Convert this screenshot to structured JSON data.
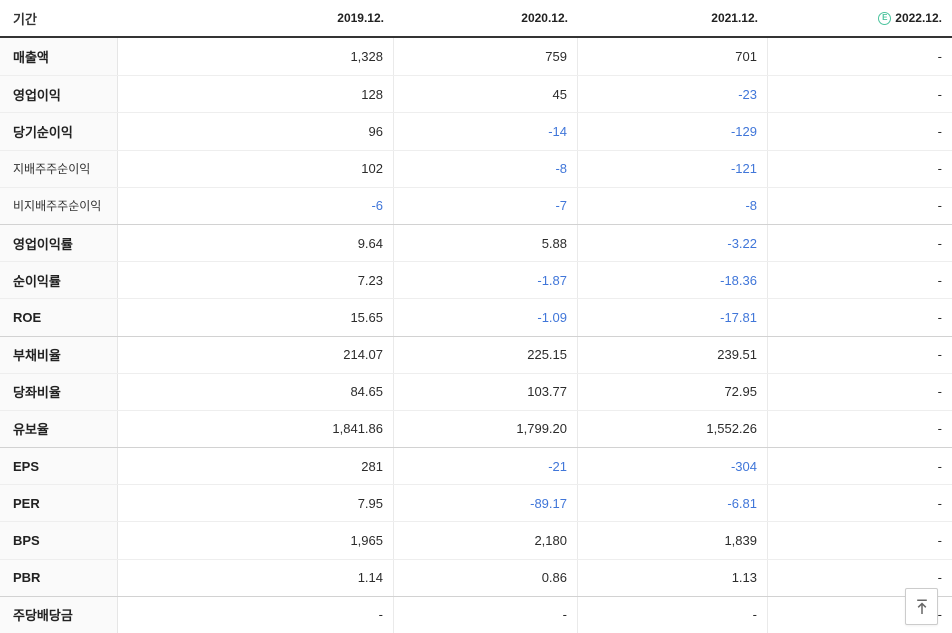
{
  "colors": {
    "negative_value": "#4076d9",
    "estimate_green": "#4cc49e",
    "header_border": "#343434"
  },
  "table": {
    "period_label": "기간",
    "columns": [
      "2019.12.",
      "2020.12.",
      "2021.12.",
      "2022.12."
    ],
    "estimate_column_index": 3,
    "estimate_icon": "E",
    "rows": [
      {
        "label": "매출액",
        "sub": false,
        "group_start": false,
        "values": [
          "1,328",
          "759",
          "701",
          "-"
        ]
      },
      {
        "label": "영업이익",
        "sub": false,
        "group_start": false,
        "values": [
          "128",
          "45",
          "-23",
          "-"
        ]
      },
      {
        "label": "당기순이익",
        "sub": false,
        "group_start": false,
        "values": [
          "96",
          "-14",
          "-129",
          "-"
        ]
      },
      {
        "label": "지배주주순이익",
        "sub": true,
        "group_start": false,
        "values": [
          "102",
          "-8",
          "-121",
          "-"
        ]
      },
      {
        "label": "비지배주주순이익",
        "sub": true,
        "group_start": false,
        "values": [
          "-6",
          "-7",
          "-8",
          "-"
        ]
      },
      {
        "label": "영업이익률",
        "sub": false,
        "group_start": true,
        "values": [
          "9.64",
          "5.88",
          "-3.22",
          "-"
        ]
      },
      {
        "label": "순이익률",
        "sub": false,
        "group_start": false,
        "values": [
          "7.23",
          "-1.87",
          "-18.36",
          "-"
        ]
      },
      {
        "label": "ROE",
        "sub": false,
        "group_start": false,
        "values": [
          "15.65",
          "-1.09",
          "-17.81",
          "-"
        ]
      },
      {
        "label": "부채비율",
        "sub": false,
        "group_start": true,
        "values": [
          "214.07",
          "225.15",
          "239.51",
          "-"
        ]
      },
      {
        "label": "당좌비율",
        "sub": false,
        "group_start": false,
        "values": [
          "84.65",
          "103.77",
          "72.95",
          "-"
        ]
      },
      {
        "label": "유보율",
        "sub": false,
        "group_start": false,
        "values": [
          "1,841.86",
          "1,799.20",
          "1,552.26",
          "-"
        ]
      },
      {
        "label": "EPS",
        "sub": false,
        "group_start": true,
        "values": [
          "281",
          "-21",
          "-304",
          "-"
        ]
      },
      {
        "label": "PER",
        "sub": false,
        "group_start": false,
        "values": [
          "7.95",
          "-89.17",
          "-6.81",
          "-"
        ]
      },
      {
        "label": "BPS",
        "sub": false,
        "group_start": false,
        "values": [
          "1,965",
          "2,180",
          "1,839",
          "-"
        ]
      },
      {
        "label": "PBR",
        "sub": false,
        "group_start": false,
        "values": [
          "1.14",
          "0.86",
          "1.13",
          "-"
        ]
      },
      {
        "label": "주당배당금",
        "sub": false,
        "group_start": true,
        "values": [
          "-",
          "-",
          "-",
          "-"
        ]
      }
    ]
  },
  "scroll_top_button": {
    "icon": "arrow-up-to-line"
  }
}
